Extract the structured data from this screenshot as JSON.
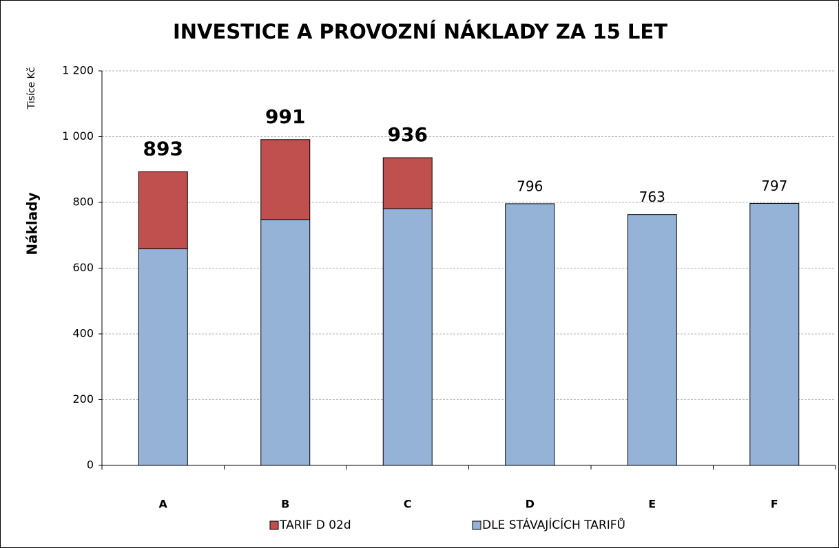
{
  "chart_data": {
    "type": "stacked_bar",
    "title": "INVESTICE A PROVOZNÍ NÁKLADY ZA 15 LET",
    "y_label": "Náklady",
    "y_unit": "Tisíce Kč",
    "categories": [
      "A",
      "B",
      "C",
      "D",
      "E",
      "F"
    ],
    "series": [
      {
        "name": "DLE STÁVAJÍCÍCH TARIFŮ",
        "color": "#95b3d7",
        "values": [
          659,
          748,
          781,
          796,
          763,
          797
        ]
      },
      {
        "name": "TARIF D 02d",
        "color": "#c0504d",
        "values": [
          234,
          243,
          155,
          null,
          null,
          null
        ]
      }
    ],
    "totals": [
      893,
      991,
      936,
      null,
      null,
      null
    ],
    "ylim": [
      0,
      1200
    ],
    "yticks": [
      0,
      200,
      400,
      600,
      800,
      {
        "value": 1000,
        "label": "1 000"
      },
      {
        "value": 1200,
        "label": "1 200"
      }
    ],
    "grid": true,
    "legend": "bottom"
  }
}
